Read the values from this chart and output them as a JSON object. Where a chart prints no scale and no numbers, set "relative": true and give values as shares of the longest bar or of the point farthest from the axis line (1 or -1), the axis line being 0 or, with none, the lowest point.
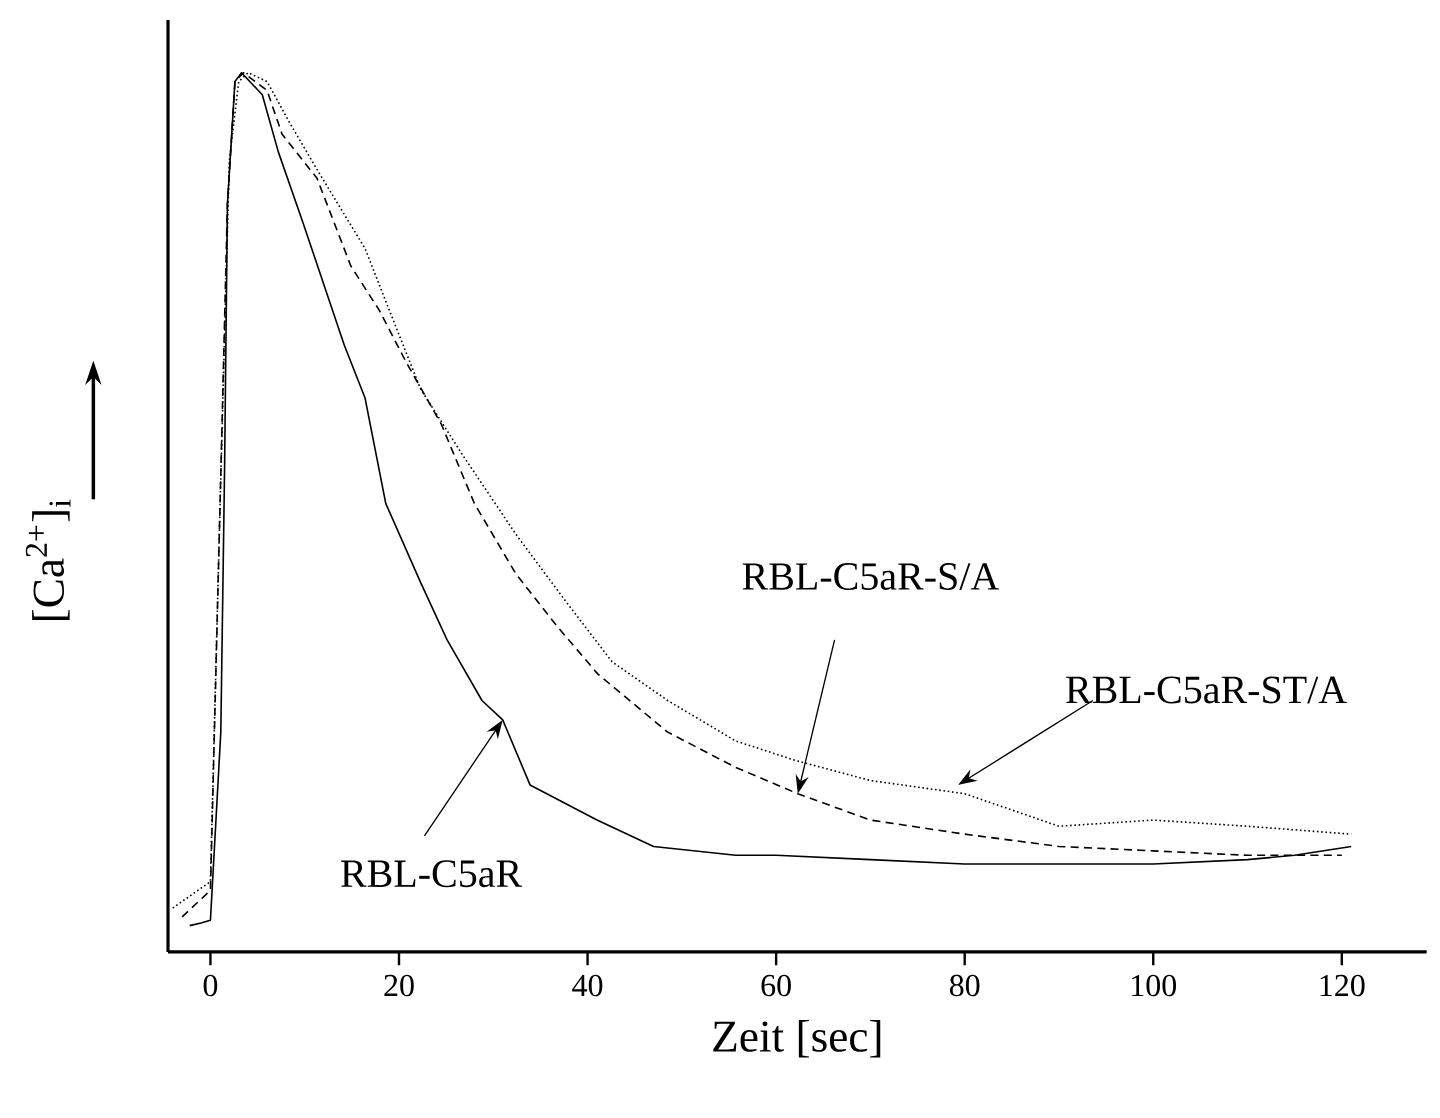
{
  "chart_data": {
    "type": "line",
    "relative": true,
    "xlabel": "Zeit [sec]",
    "ylabel": "[Ca$^{2+}$]$_{i}$",
    "xlim": [
      -4.5,
      129
    ],
    "xticks": [
      0,
      20,
      40,
      60,
      80,
      100,
      120
    ],
    "grid": false,
    "marker": "none",
    "series": [
      {
        "color": "#000000",
        "line_style": "solid",
        "x": [
          -2.2,
          -1,
          0,
          1.1,
          1.5,
          1.8,
          2.6,
          3.3,
          5.5,
          7.2,
          9.8,
          12,
          14.2,
          16.4,
          18.6,
          22.3,
          25.1,
          28.8,
          31,
          33.9,
          41,
          47,
          55.7,
          60,
          70,
          80,
          90,
          100,
          110,
          115,
          121
        ],
        "values": [
          0.03,
          0.033,
          0.036,
          0.25,
          0.55,
          0.85,
          0.99,
          1.0,
          0.975,
          0.91,
          0.83,
          0.76,
          0.69,
          0.63,
          0.51,
          0.42,
          0.355,
          0.286,
          0.264,
          0.19,
          0.15,
          0.12,
          0.11,
          0.11,
          0.105,
          0.1,
          0.1,
          0.1,
          0.105,
          0.11,
          0.12
        ]
      },
      {
        "color": "#000000",
        "line_style": "dashed",
        "x": [
          -3,
          0,
          1,
          1.8,
          2.6,
          3.5,
          6,
          7.6,
          11.3,
          14.9,
          17.9,
          20.8,
          24.5,
          28,
          32.4,
          36.8,
          41.1,
          48.5,
          55.7,
          62.3,
          70,
          80,
          90,
          100,
          110,
          120
        ],
        "values": [
          0.04,
          0.07,
          0.5,
          0.85,
          0.99,
          1.0,
          0.98,
          0.93,
          0.88,
          0.78,
          0.73,
          0.67,
          0.6,
          0.51,
          0.43,
          0.37,
          0.316,
          0.25,
          0.21,
          0.18,
          0.15,
          0.134,
          0.12,
          0.115,
          0.11,
          0.11
        ]
      },
      {
        "color": "#000000",
        "line_style": "dotted",
        "x": [
          -4,
          0,
          1,
          2,
          3,
          4,
          6,
          8.3,
          11.3,
          16.4,
          18.6,
          22.3,
          26.7,
          32.4,
          37.6,
          42.6,
          48.5,
          55.7,
          62,
          70,
          80,
          90,
          100,
          110,
          121
        ],
        "values": [
          0.05,
          0.08,
          0.5,
          0.9,
          0.99,
          1.0,
          0.99,
          0.945,
          0.89,
          0.8,
          0.74,
          0.64,
          0.566,
          0.475,
          0.4,
          0.33,
          0.286,
          0.24,
          0.218,
          0.195,
          0.18,
          0.143,
          0.15,
          0.143,
          0.134
        ]
      }
    ],
    "annotations": [
      {
        "text": "RBL-C5aR",
        "x": 31,
        "y": 0.264
      },
      {
        "text": "RBL-C5aR-S/A",
        "x": 62.3,
        "y": 0.18
      },
      {
        "text": "RBL-C5aR-ST/A",
        "x": 79.3,
        "y": 0.19
      }
    ]
  }
}
